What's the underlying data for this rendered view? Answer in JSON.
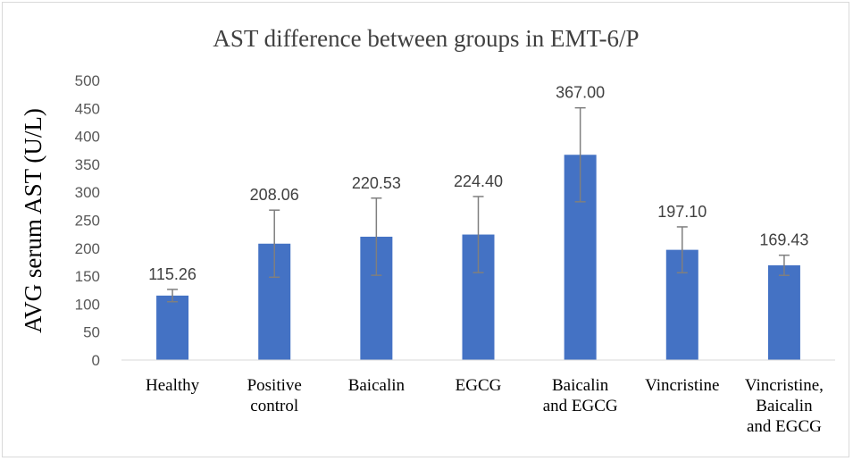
{
  "chart_data": {
    "type": "bar",
    "title": "AST difference between groups in EMT-6/P",
    "xlabel": "",
    "ylabel": "AVG serum AST (U/L)",
    "ylim": [
      0,
      500
    ],
    "yticks": [
      0,
      50,
      100,
      150,
      200,
      250,
      300,
      350,
      400,
      450,
      500
    ],
    "grid": false,
    "legend": "none",
    "bar_color": "#4472c4",
    "error_bar_color": "#7f7f7f",
    "categories": [
      [
        "Healthy"
      ],
      [
        "Positive",
        "control"
      ],
      [
        "Baicalin"
      ],
      [
        "EGCG"
      ],
      [
        "Baicalin",
        "and EGCG"
      ],
      [
        "Vincristine"
      ],
      [
        "Vincristine,",
        "Baicalin",
        "and EGCG"
      ]
    ],
    "values": [
      115.26,
      208.06,
      220.53,
      224.4,
      367.0,
      197.1,
      169.43
    ],
    "data_labels": [
      "115.26",
      "208.06",
      "220.53",
      "224.40",
      "367.00",
      "197.10",
      "169.43"
    ],
    "error": [
      11,
      60,
      69,
      68,
      84,
      41,
      18
    ]
  }
}
